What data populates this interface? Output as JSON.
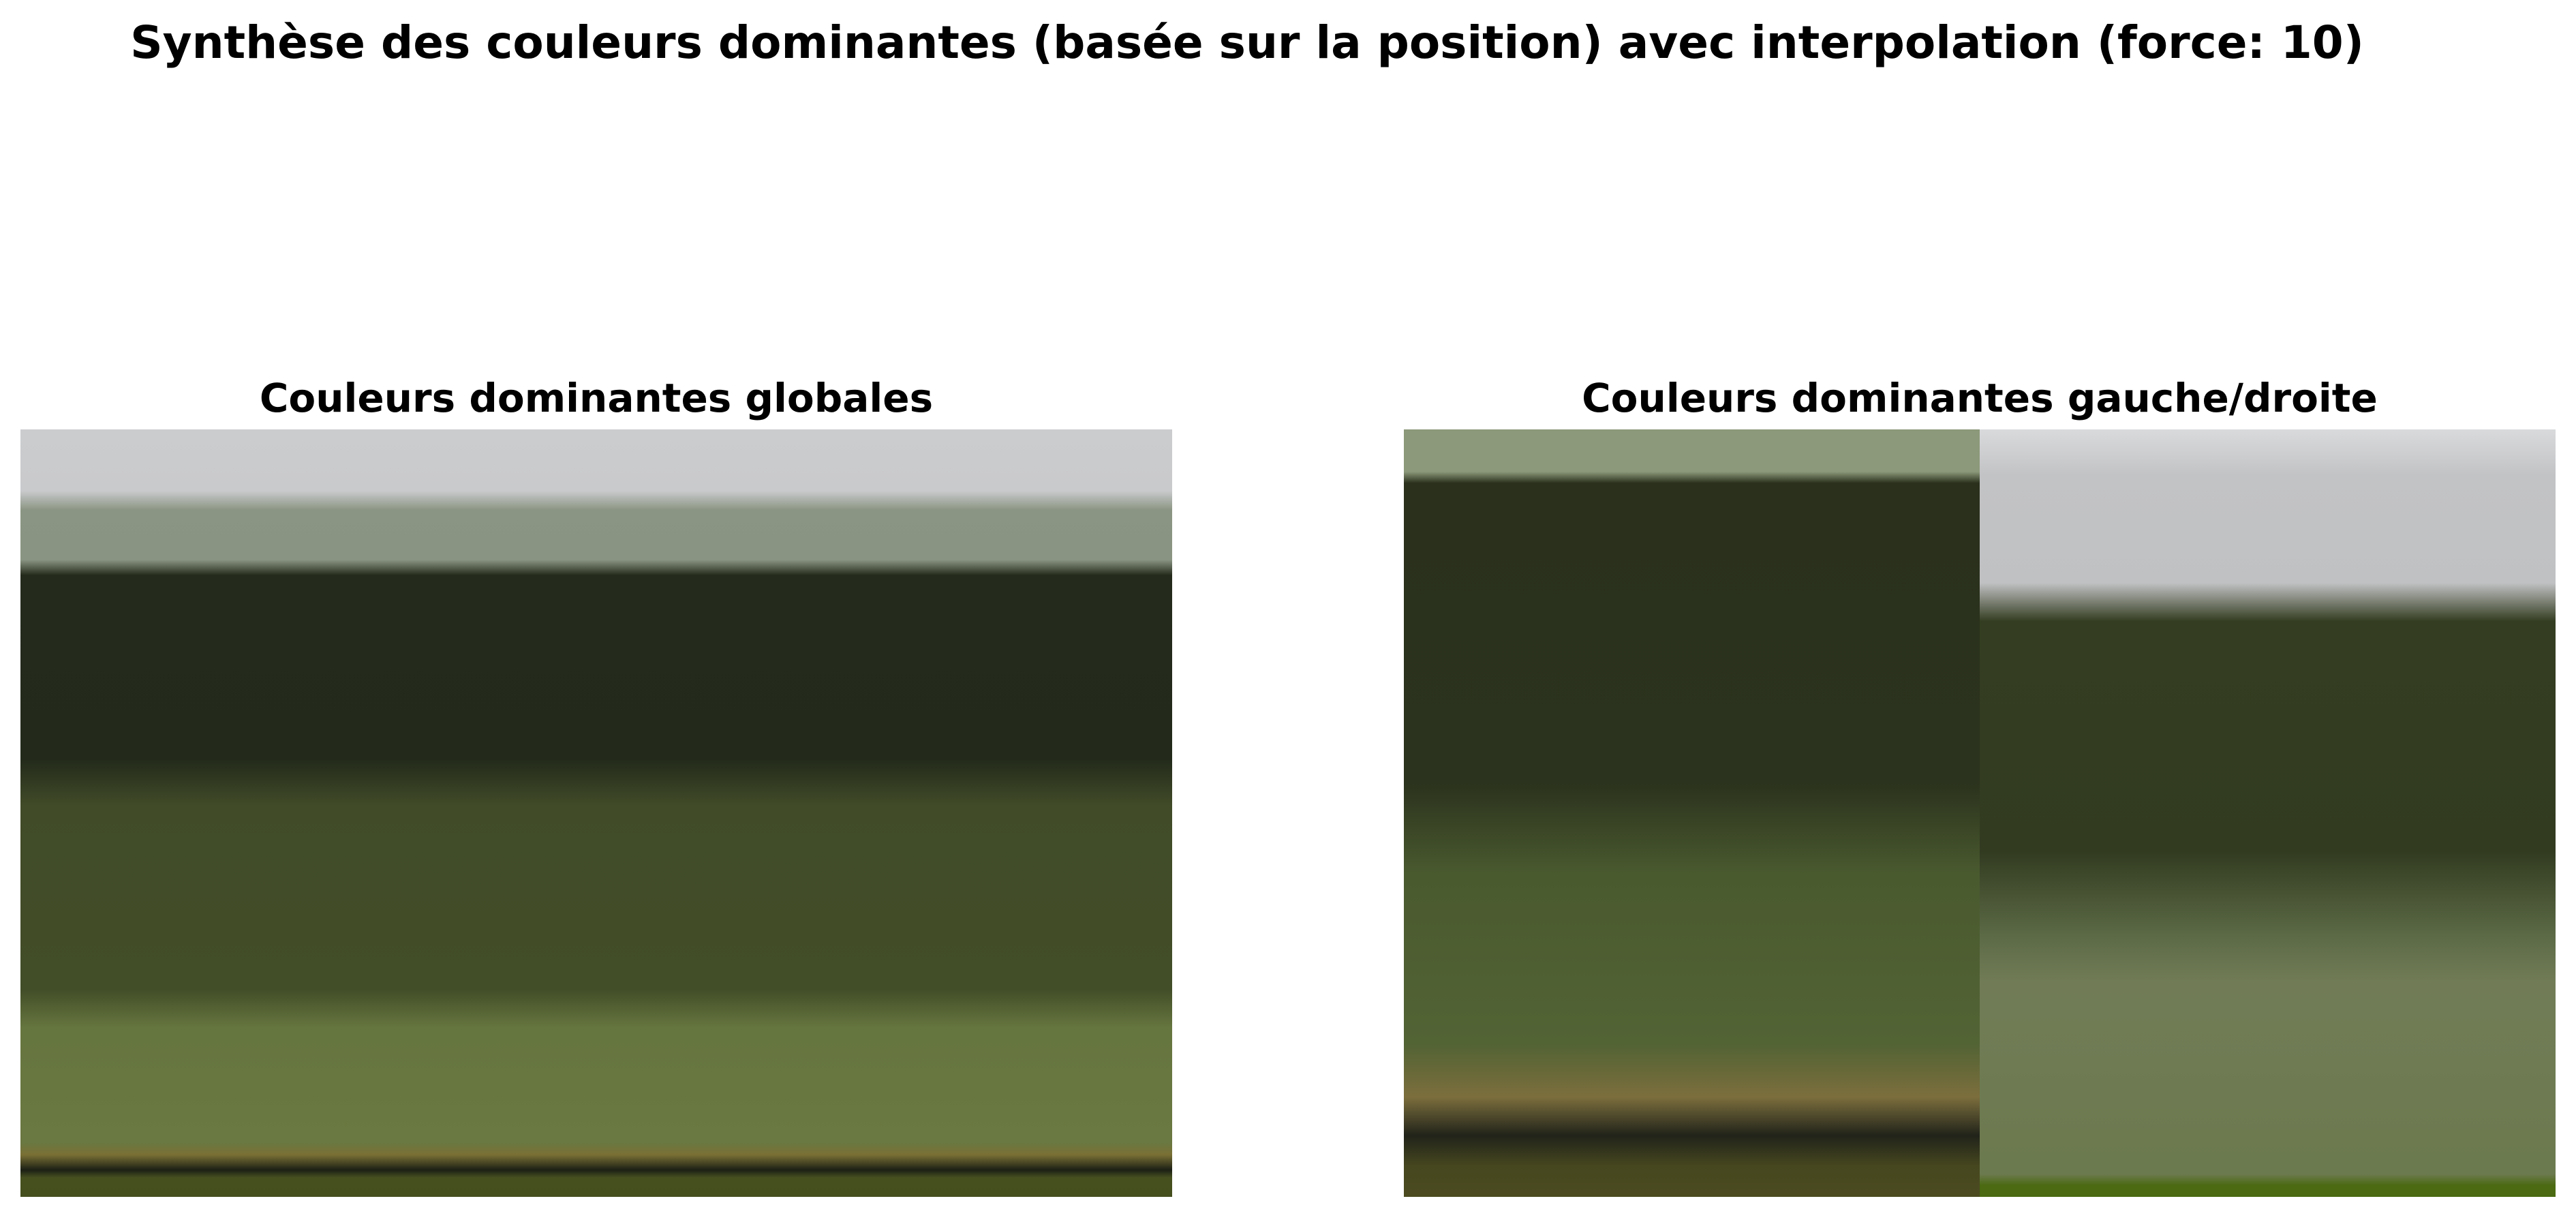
{
  "title": "Synthèse des couleurs dominantes (basée sur la position) avec interpolation (force: 10)",
  "panels": {
    "global": {
      "title": "Couleurs dominantes globales",
      "gradient": [
        [
          "#cbccce",
          0
        ],
        [
          "#c9cacc",
          8
        ],
        [
          "#8b9583",
          10.5
        ],
        [
          "#8a9482",
          17
        ],
        [
          "#252b1c",
          19
        ],
        [
          "#232a1b",
          43
        ],
        [
          "#414b28",
          49
        ],
        [
          "#424e28",
          73
        ],
        [
          "#66763f",
          78
        ],
        [
          "#6a7841",
          93
        ],
        [
          "#7a7035",
          94.5
        ],
        [
          "#1c2015",
          96.5
        ],
        [
          "#46501f",
          97.5
        ],
        [
          "#454f1e",
          100
        ]
      ]
    },
    "left_right": {
      "title": "Couleurs dominantes gauche/droite",
      "left_gradient": [
        [
          "#8c997a",
          0
        ],
        [
          "#8c997a",
          5.5
        ],
        [
          "#2a301c",
          7
        ],
        [
          "#2b321d",
          46
        ],
        [
          "#4a5a2f",
          58
        ],
        [
          "#526334",
          80
        ],
        [
          "#7c6e3d",
          87
        ],
        [
          "#21231a",
          92
        ],
        [
          "#46471f",
          96
        ],
        [
          "#4c4b20",
          100
        ]
      ],
      "right_gradient": [
        [
          "#d9dadc",
          0
        ],
        [
          "#c2c3c5",
          6
        ],
        [
          "#c0c1c3",
          20
        ],
        [
          "#343d21",
          25
        ],
        [
          "#323b20",
          55
        ],
        [
          "#5c6a46",
          66
        ],
        [
          "#717c56",
          72
        ],
        [
          "#6c7a4f",
          97
        ],
        [
          "#4b6a12",
          98.5
        ],
        [
          "#4b6a12",
          100
        ]
      ]
    }
  }
}
